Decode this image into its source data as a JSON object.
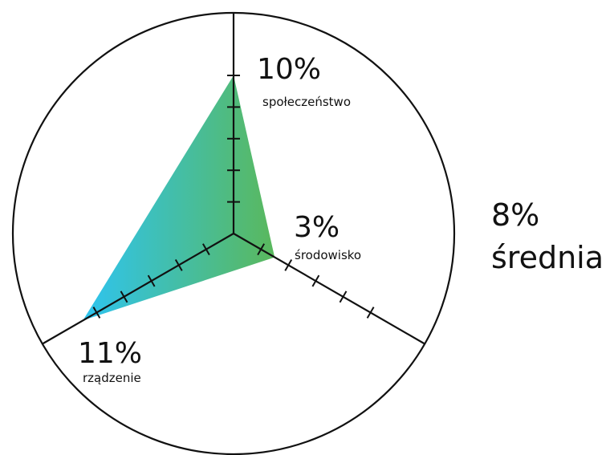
{
  "chart_data": {
    "type": "radar",
    "title": "",
    "axes": [
      {
        "label": "społeczeństwo",
        "value": 10,
        "display": "10%"
      },
      {
        "label": "środowisko",
        "value": 3,
        "display": "3%"
      },
      {
        "label": "rządzenie",
        "value": 11,
        "display": "11%"
      }
    ],
    "max": 12,
    "ticks": [
      2,
      4,
      6,
      8,
      10
    ],
    "unit": "%",
    "grid": false,
    "average": {
      "value": 8,
      "display": "8%",
      "label": "średnia"
    },
    "fill_gradient": [
      "#2ec4f0",
      "#5ab85c"
    ],
    "line_color": "#111111"
  }
}
